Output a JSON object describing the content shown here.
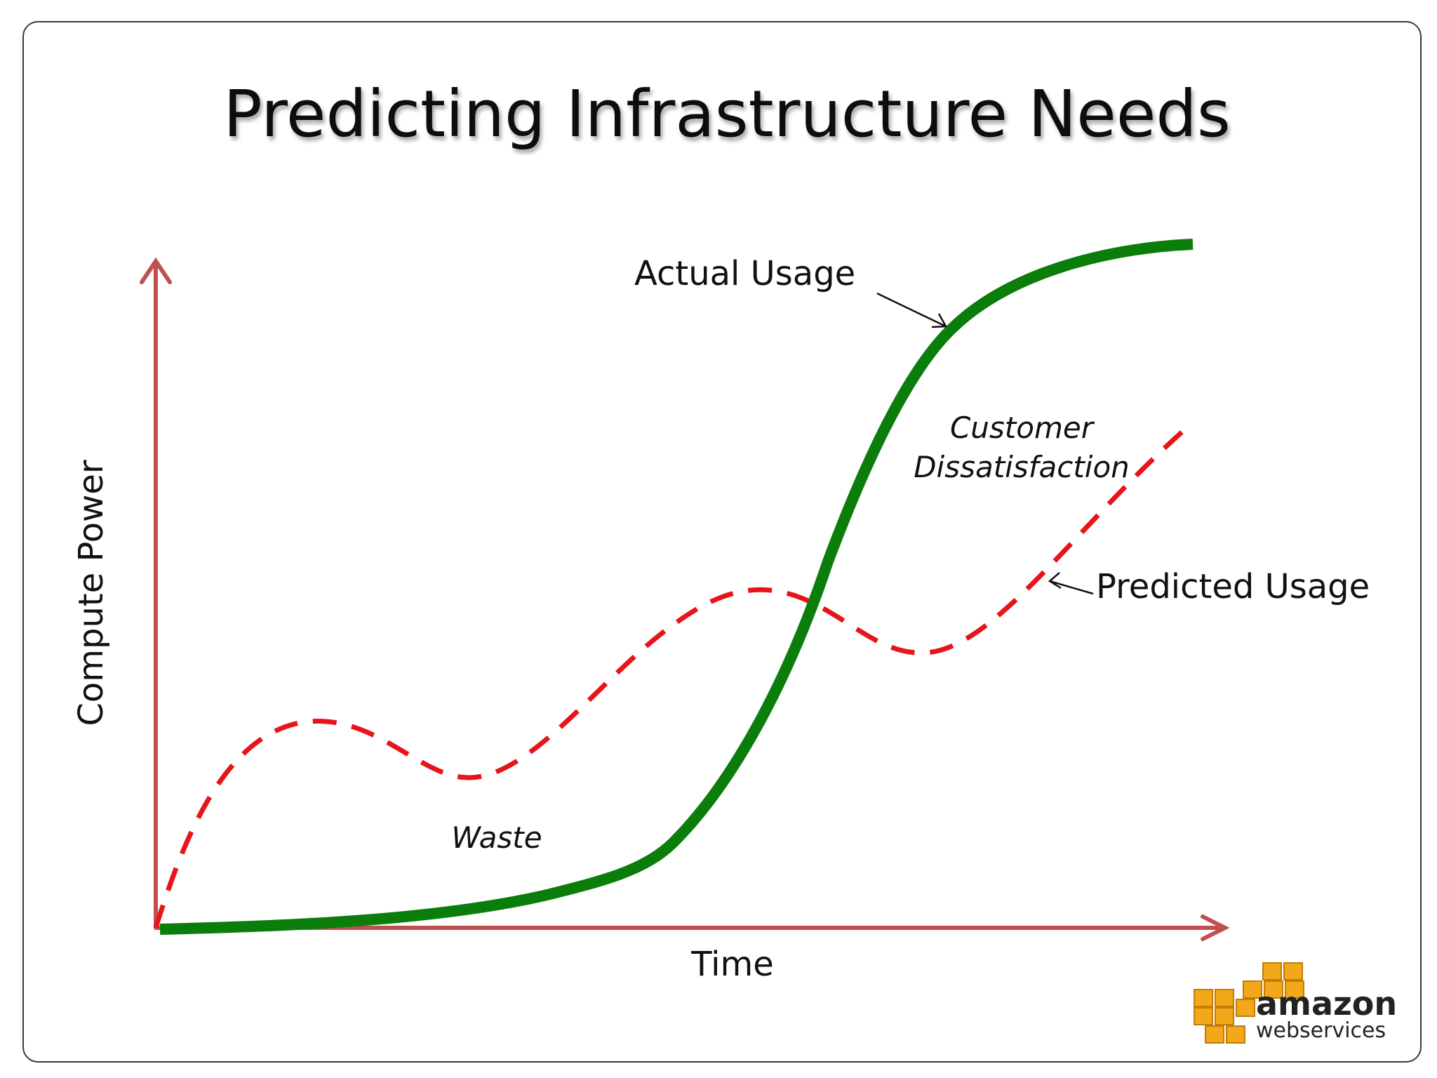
{
  "title": "Predicting Infrastructure Needs",
  "axes": {
    "x_label": "Time",
    "y_label": "Compute Power"
  },
  "annotations": {
    "actual": "Actual Usage",
    "predicted": "Predicted Usage",
    "dissatisfaction_line1": "Customer",
    "dissatisfaction_line2": "Dissatisfaction",
    "waste": "Waste"
  },
  "logo": {
    "line1": "amazon",
    "line2": "webservices"
  },
  "colors": {
    "axis": "#c0504d",
    "actual": "#0a7d0a",
    "predicted": "#e8141b",
    "text": "#111111",
    "logo_cube": "#f3a81a"
  }
}
